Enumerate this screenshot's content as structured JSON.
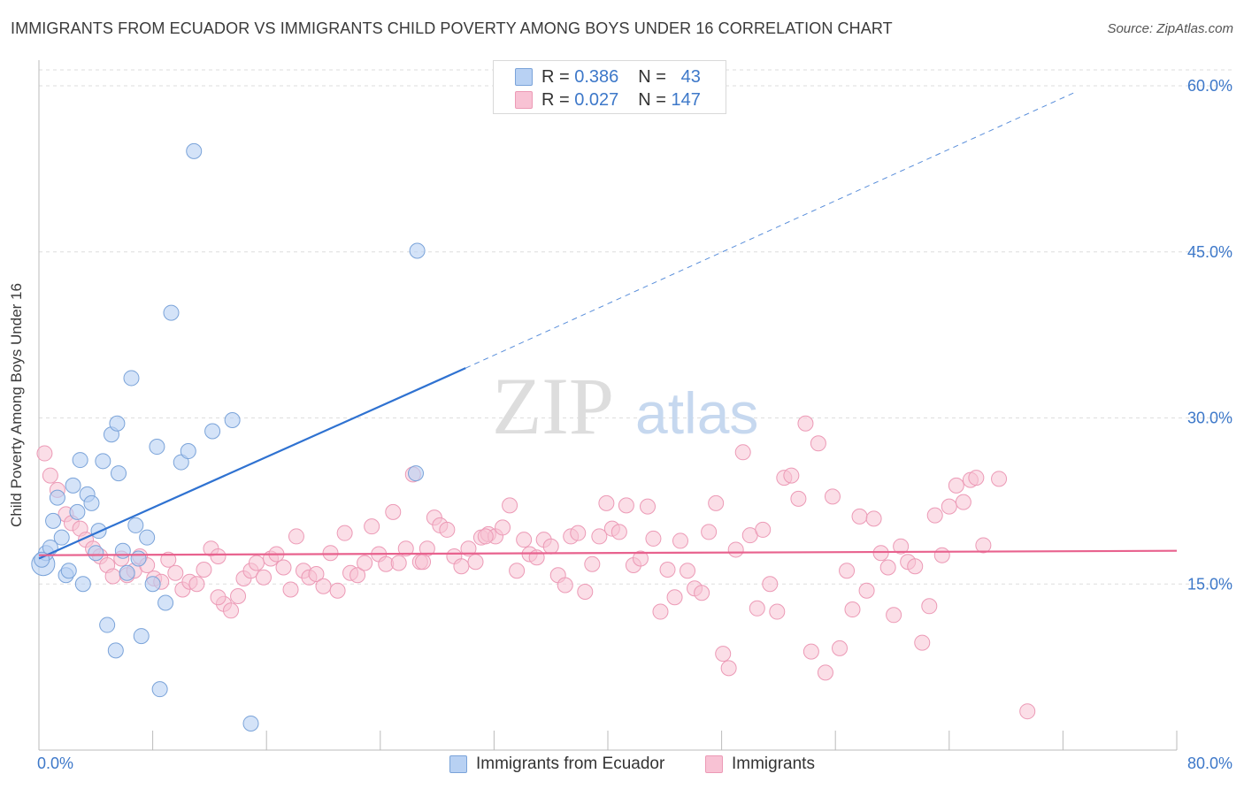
{
  "header": {
    "title": "IMMIGRANTS FROM ECUADOR VS IMMIGRANTS CHILD POVERTY AMONG BOYS UNDER 16 CORRELATION CHART",
    "source": "Source: ZipAtlas.com"
  },
  "stats": {
    "rows": [
      {
        "r_label": "R =",
        "r_value": "0.386",
        "n_label": "N =",
        "n_value": "43",
        "color": "#b8d1f3"
      },
      {
        "r_label": "R =",
        "r_value": "0.027",
        "n_label": "N =",
        "n_value": "147",
        "color": "#f8c2d4"
      }
    ]
  },
  "watermark": {
    "zip": "ZIP",
    "atlas": "atlas"
  },
  "colors": {
    "blue_fill": "#b8d1f3",
    "blue_stroke": "#7aa3d9",
    "blue_line": "#2f72d1",
    "pink_fill": "#f8c2d4",
    "pink_stroke": "#ec9ab6",
    "pink_line": "#e8628e",
    "tick_label": "#3d78c9",
    "grid": "#dddddd"
  },
  "chart_data": {
    "type": "scatter",
    "title": "IMMIGRANTS FROM ECUADOR VS IMMIGRANTS CHILD POVERTY AMONG BOYS UNDER 16 CORRELATION CHART",
    "xlabel": "",
    "ylabel": "Child Poverty Among Boys Under 16",
    "xlim": [
      0,
      80
    ],
    "ylim": [
      0,
      60
    ],
    "x_tick_labels": [
      "0.0%",
      "80.0%"
    ],
    "y_ticks": [
      15,
      30,
      45,
      60
    ],
    "y_tick_labels": [
      "15.0%",
      "30.0%",
      "45.0%",
      "60.0%"
    ],
    "grid": true,
    "legend_position": "bottom",
    "series": [
      {
        "name": "Immigrants from Ecuador",
        "r": 0.386,
        "n": 43,
        "trend": {
          "x": [
            0,
            30
          ],
          "y": [
            17.3,
            34.5
          ],
          "dashed_extension_to": [
            73,
            59.5
          ]
        },
        "points": [
          [
            0.3,
            16.8
          ],
          [
            0.5,
            17.8
          ],
          [
            0.8,
            18.3
          ],
          [
            1.0,
            20.7
          ],
          [
            1.3,
            22.8
          ],
          [
            1.6,
            19.2
          ],
          [
            1.9,
            15.8
          ],
          [
            2.1,
            16.2
          ],
          [
            2.4,
            23.9
          ],
          [
            2.7,
            21.5
          ],
          [
            2.9,
            26.2
          ],
          [
            3.1,
            15.0
          ],
          [
            3.4,
            23.1
          ],
          [
            3.7,
            22.3
          ],
          [
            4.0,
            17.8
          ],
          [
            4.2,
            19.8
          ],
          [
            4.5,
            26.1
          ],
          [
            4.8,
            11.3
          ],
          [
            5.1,
            28.5
          ],
          [
            5.4,
            9.0
          ],
          [
            5.6,
            25.0
          ],
          [
            5.9,
            18.0
          ],
          [
            6.2,
            16.0
          ],
          [
            6.5,
            33.6
          ],
          [
            6.8,
            20.3
          ],
          [
            7.0,
            17.3
          ],
          [
            7.2,
            10.3
          ],
          [
            7.6,
            19.2
          ],
          [
            8.0,
            15.0
          ],
          [
            8.3,
            27.4
          ],
          [
            8.5,
            5.5
          ],
          [
            8.9,
            13.3
          ],
          [
            9.3,
            39.5
          ],
          [
            10.0,
            26.0
          ],
          [
            10.9,
            54.1
          ],
          [
            12.2,
            28.8
          ],
          [
            13.6,
            29.8
          ],
          [
            14.9,
            2.4
          ],
          [
            26.6,
            45.1
          ],
          [
            26.5,
            25.0
          ],
          [
            5.5,
            29.5
          ],
          [
            0.2,
            17.2
          ],
          [
            10.5,
            27.0
          ]
        ]
      },
      {
        "name": "Immigrants",
        "r": 0.027,
        "n": 147,
        "trend": {
          "x": [
            0,
            80
          ],
          "y": [
            17.6,
            18.0
          ]
        },
        "points": [
          [
            0.4,
            26.8
          ],
          [
            0.8,
            24.8
          ],
          [
            1.3,
            23.5
          ],
          [
            1.9,
            21.3
          ],
          [
            2.3,
            20.5
          ],
          [
            2.9,
            20.0
          ],
          [
            3.3,
            19.0
          ],
          [
            3.8,
            18.2
          ],
          [
            4.3,
            17.5
          ],
          [
            4.8,
            16.7
          ],
          [
            5.2,
            15.7
          ],
          [
            5.8,
            17.3
          ],
          [
            6.2,
            15.8
          ],
          [
            6.7,
            16.2
          ],
          [
            7.1,
            17.5
          ],
          [
            7.6,
            16.7
          ],
          [
            8.1,
            15.5
          ],
          [
            8.6,
            15.2
          ],
          [
            9.1,
            17.2
          ],
          [
            9.6,
            16.0
          ],
          [
            10.1,
            14.5
          ],
          [
            10.6,
            15.2
          ],
          [
            11.1,
            15.0
          ],
          [
            11.6,
            16.3
          ],
          [
            12.1,
            18.2
          ],
          [
            12.6,
            17.5
          ],
          [
            13.0,
            13.2
          ],
          [
            13.5,
            12.6
          ],
          [
            14.0,
            13.9
          ],
          [
            14.4,
            15.5
          ],
          [
            14.9,
            16.2
          ],
          [
            15.3,
            16.9
          ],
          [
            15.8,
            15.6
          ],
          [
            16.3,
            17.3
          ],
          [
            16.7,
            17.7
          ],
          [
            17.2,
            16.5
          ],
          [
            17.7,
            14.5
          ],
          [
            18.1,
            19.3
          ],
          [
            18.6,
            16.2
          ],
          [
            19.0,
            15.6
          ],
          [
            19.5,
            15.9
          ],
          [
            20.0,
            14.8
          ],
          [
            20.5,
            17.8
          ],
          [
            21.0,
            14.4
          ],
          [
            21.5,
            19.6
          ],
          [
            21.9,
            16.0
          ],
          [
            22.4,
            15.8
          ],
          [
            22.9,
            16.9
          ],
          [
            23.4,
            20.2
          ],
          [
            23.9,
            17.7
          ],
          [
            24.4,
            16.8
          ],
          [
            24.9,
            21.5
          ],
          [
            25.3,
            16.9
          ],
          [
            25.8,
            18.2
          ],
          [
            26.3,
            24.9
          ],
          [
            26.8,
            17.0
          ],
          [
            27.3,
            18.2
          ],
          [
            27.8,
            21.0
          ],
          [
            28.2,
            20.3
          ],
          [
            28.7,
            19.9
          ],
          [
            29.2,
            17.5
          ],
          [
            29.7,
            16.6
          ],
          [
            30.2,
            18.2
          ],
          [
            30.7,
            17.0
          ],
          [
            31.1,
            19.2
          ],
          [
            31.6,
            19.5
          ],
          [
            32.1,
            19.3
          ],
          [
            32.6,
            20.1
          ],
          [
            33.1,
            22.1
          ],
          [
            33.6,
            16.2
          ],
          [
            34.1,
            19.0
          ],
          [
            34.5,
            17.7
          ],
          [
            35.0,
            17.4
          ],
          [
            35.5,
            19.0
          ],
          [
            36.0,
            18.4
          ],
          [
            36.5,
            15.8
          ],
          [
            37.0,
            14.9
          ],
          [
            37.4,
            19.3
          ],
          [
            37.9,
            19.6
          ],
          [
            38.4,
            14.3
          ],
          [
            38.9,
            16.8
          ],
          [
            39.4,
            19.3
          ],
          [
            39.9,
            22.3
          ],
          [
            40.3,
            20.0
          ],
          [
            40.8,
            19.7
          ],
          [
            41.3,
            22.1
          ],
          [
            41.8,
            16.7
          ],
          [
            42.3,
            17.3
          ],
          [
            42.8,
            22.0
          ],
          [
            43.2,
            19.1
          ],
          [
            43.7,
            12.5
          ],
          [
            44.2,
            16.3
          ],
          [
            44.7,
            13.8
          ],
          [
            45.1,
            18.9
          ],
          [
            45.6,
            16.2
          ],
          [
            46.1,
            14.6
          ],
          [
            46.6,
            14.2
          ],
          [
            47.1,
            19.7
          ],
          [
            47.6,
            22.3
          ],
          [
            48.1,
            8.7
          ],
          [
            48.5,
            7.4
          ],
          [
            49.0,
            18.1
          ],
          [
            49.5,
            26.9
          ],
          [
            50.0,
            19.4
          ],
          [
            50.5,
            12.8
          ],
          [
            50.9,
            19.9
          ],
          [
            51.4,
            15.0
          ],
          [
            51.9,
            12.5
          ],
          [
            52.4,
            24.6
          ],
          [
            52.9,
            24.8
          ],
          [
            53.4,
            22.7
          ],
          [
            53.9,
            29.5
          ],
          [
            54.3,
            8.9
          ],
          [
            54.8,
            27.7
          ],
          [
            55.3,
            7.0
          ],
          [
            55.8,
            22.9
          ],
          [
            56.3,
            9.2
          ],
          [
            56.8,
            16.2
          ],
          [
            57.2,
            12.7
          ],
          [
            57.7,
            21.1
          ],
          [
            58.2,
            14.4
          ],
          [
            58.7,
            20.9
          ],
          [
            59.2,
            17.8
          ],
          [
            59.7,
            16.5
          ],
          [
            60.1,
            12.2
          ],
          [
            60.6,
            18.4
          ],
          [
            61.1,
            17.0
          ],
          [
            61.6,
            16.6
          ],
          [
            62.1,
            9.7
          ],
          [
            62.6,
            13.0
          ],
          [
            63.0,
            21.2
          ],
          [
            63.5,
            17.6
          ],
          [
            64.0,
            22.0
          ],
          [
            64.5,
            23.9
          ],
          [
            65.0,
            22.4
          ],
          [
            65.5,
            24.4
          ],
          [
            65.9,
            24.6
          ],
          [
            66.4,
            18.5
          ],
          [
            67.5,
            24.5
          ],
          [
            69.5,
            3.5
          ],
          [
            31.4,
            19.3
          ],
          [
            27.0,
            17.0
          ],
          [
            12.6,
            13.8
          ]
        ]
      }
    ]
  },
  "legend": {
    "items": [
      {
        "label": "Immigrants from Ecuador",
        "color": "#b8d1f3"
      },
      {
        "label": "Immigrants",
        "color": "#f8c2d4"
      }
    ]
  }
}
